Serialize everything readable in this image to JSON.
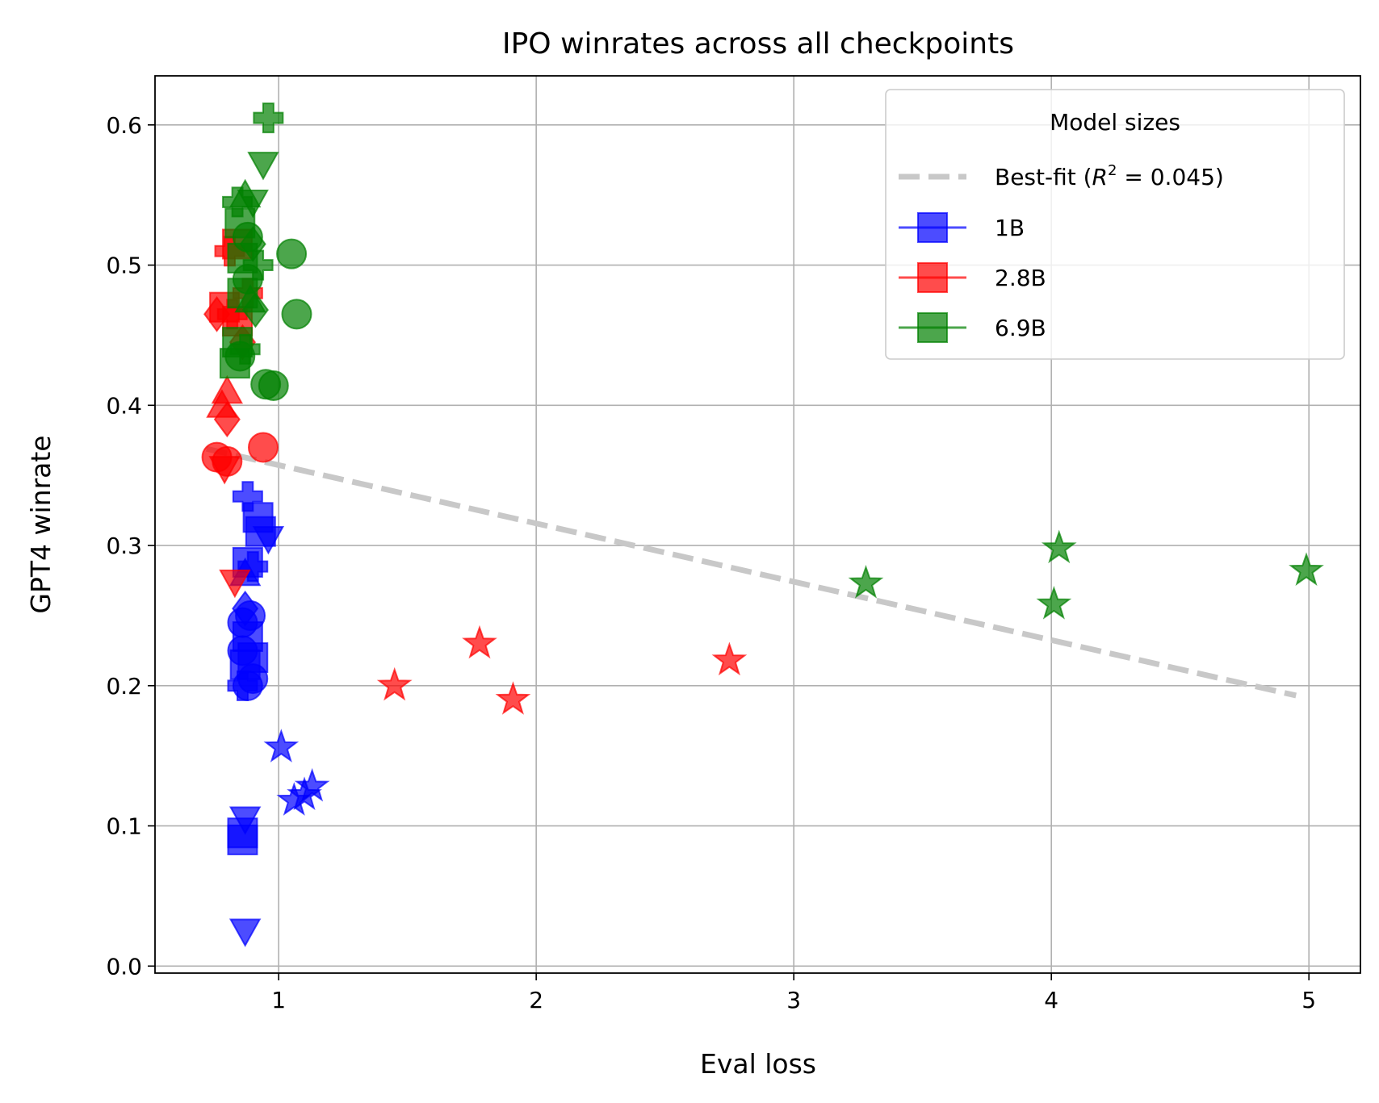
{
  "chart_data": {
    "type": "scatter",
    "title": "IPO winrates across all checkpoints",
    "xlabel": "Eval loss",
    "ylabel": "GPT4 winrate",
    "xlim": [
      0.52,
      5.2
    ],
    "ylim": [
      -0.005,
      0.635
    ],
    "xticks": [
      1,
      2,
      3,
      4,
      5
    ],
    "yticks": [
      0.0,
      0.1,
      0.2,
      0.3,
      0.4,
      0.5,
      0.6
    ],
    "xtick_labels": [
      "1",
      "2",
      "3",
      "4",
      "5"
    ],
    "ytick_labels": [
      "0.0",
      "0.1",
      "0.2",
      "0.3",
      "0.4",
      "0.5",
      "0.6"
    ],
    "grid": true,
    "legend": {
      "title": "Model sizes",
      "placement": "top-right",
      "entries": [
        {
          "label_prefix": "Best-fit (",
          "label_math": "R",
          "label_sup": "2",
          "label_suffix": " = 0.045)",
          "kind": "fit"
        },
        {
          "label": "1B",
          "series": 0
        },
        {
          "label": "2.8B",
          "series": 1
        },
        {
          "label": "6.9B",
          "series": 2
        }
      ]
    },
    "best_fit": {
      "label": "Best-fit (R^2 = 0.045)",
      "x": [
        0.72,
        4.95
      ],
      "y": [
        0.369,
        0.193
      ],
      "color": "#c8c8c8"
    },
    "series": [
      {
        "name": "1B",
        "color": "#0000ff",
        "points": [
          {
            "x": 0.87,
            "y": 0.025,
            "marker": "v"
          },
          {
            "x": 0.86,
            "y": 0.09,
            "marker": "s"
          },
          {
            "x": 0.86,
            "y": 0.095,
            "marker": "s"
          },
          {
            "x": 0.87,
            "y": 0.105,
            "marker": "v"
          },
          {
            "x": 1.01,
            "y": 0.156,
            "marker": "*"
          },
          {
            "x": 1.06,
            "y": 0.118,
            "marker": "*"
          },
          {
            "x": 1.1,
            "y": 0.122,
            "marker": "*"
          },
          {
            "x": 1.13,
            "y": 0.128,
            "marker": "*"
          },
          {
            "x": 0.86,
            "y": 0.2,
            "marker": "P"
          },
          {
            "x": 0.88,
            "y": 0.2,
            "marker": "o"
          },
          {
            "x": 0.9,
            "y": 0.205,
            "marker": "o"
          },
          {
            "x": 0.87,
            "y": 0.215,
            "marker": "s"
          },
          {
            "x": 0.86,
            "y": 0.225,
            "marker": "o"
          },
          {
            "x": 0.9,
            "y": 0.22,
            "marker": "s"
          },
          {
            "x": 0.88,
            "y": 0.235,
            "marker": "s"
          },
          {
            "x": 0.86,
            "y": 0.245,
            "marker": "o"
          },
          {
            "x": 0.89,
            "y": 0.25,
            "marker": "o"
          },
          {
            "x": 0.87,
            "y": 0.255,
            "marker": "D"
          },
          {
            "x": 0.9,
            "y": 0.285,
            "marker": "P"
          },
          {
            "x": 0.87,
            "y": 0.28,
            "marker": "^"
          },
          {
            "x": 0.88,
            "y": 0.288,
            "marker": "s"
          },
          {
            "x": 0.93,
            "y": 0.31,
            "marker": "s"
          },
          {
            "x": 0.96,
            "y": 0.305,
            "marker": "v"
          },
          {
            "x": 0.92,
            "y": 0.32,
            "marker": "s"
          },
          {
            "x": 0.88,
            "y": 0.335,
            "marker": "P"
          }
        ]
      },
      {
        "name": "2.8B",
        "color": "#ff0000",
        "points": [
          {
            "x": 0.76,
            "y": 0.363,
            "marker": "o"
          },
          {
            "x": 0.8,
            "y": 0.36,
            "marker": "o"
          },
          {
            "x": 0.79,
            "y": 0.355,
            "marker": "v"
          },
          {
            "x": 0.8,
            "y": 0.39,
            "marker": "D"
          },
          {
            "x": 0.78,
            "y": 0.4,
            "marker": "^"
          },
          {
            "x": 0.8,
            "y": 0.41,
            "marker": "^"
          },
          {
            "x": 0.94,
            "y": 0.37,
            "marker": "o"
          },
          {
            "x": 0.76,
            "y": 0.465,
            "marker": "D"
          },
          {
            "x": 0.79,
            "y": 0.47,
            "marker": "s"
          },
          {
            "x": 0.82,
            "y": 0.465,
            "marker": "P"
          },
          {
            "x": 0.84,
            "y": 0.46,
            "marker": "s"
          },
          {
            "x": 0.86,
            "y": 0.445,
            "marker": "D"
          },
          {
            "x": 0.88,
            "y": 0.48,
            "marker": "P"
          },
          {
            "x": 0.81,
            "y": 0.51,
            "marker": "P"
          },
          {
            "x": 0.84,
            "y": 0.515,
            "marker": "s"
          },
          {
            "x": 0.83,
            "y": 0.274,
            "marker": "v"
          },
          {
            "x": 1.45,
            "y": 0.2,
            "marker": "*"
          },
          {
            "x": 1.78,
            "y": 0.23,
            "marker": "*"
          },
          {
            "x": 1.91,
            "y": 0.19,
            "marker": "*"
          },
          {
            "x": 2.75,
            "y": 0.218,
            "marker": "*"
          }
        ]
      },
      {
        "name": "6.9B",
        "color": "#008000",
        "points": [
          {
            "x": 0.96,
            "y": 0.605,
            "marker": "P"
          },
          {
            "x": 0.94,
            "y": 0.572,
            "marker": "v"
          },
          {
            "x": 0.84,
            "y": 0.545,
            "marker": "P"
          },
          {
            "x": 0.87,
            "y": 0.55,
            "marker": "^"
          },
          {
            "x": 0.9,
            "y": 0.545,
            "marker": "v"
          },
          {
            "x": 0.85,
            "y": 0.53,
            "marker": "s"
          },
          {
            "x": 0.88,
            "y": 0.52,
            "marker": "o"
          },
          {
            "x": 0.9,
            "y": 0.515,
            "marker": "D"
          },
          {
            "x": 0.86,
            "y": 0.505,
            "marker": "s"
          },
          {
            "x": 0.92,
            "y": 0.5,
            "marker": "P"
          },
          {
            "x": 0.88,
            "y": 0.49,
            "marker": "o"
          },
          {
            "x": 1.05,
            "y": 0.508,
            "marker": "o"
          },
          {
            "x": 0.86,
            "y": 0.48,
            "marker": "s"
          },
          {
            "x": 0.89,
            "y": 0.475,
            "marker": "^"
          },
          {
            "x": 0.91,
            "y": 0.468,
            "marker": "D"
          },
          {
            "x": 1.07,
            "y": 0.465,
            "marker": "o"
          },
          {
            "x": 0.84,
            "y": 0.445,
            "marker": "s"
          },
          {
            "x": 0.85,
            "y": 0.435,
            "marker": "o"
          },
          {
            "x": 0.87,
            "y": 0.44,
            "marker": "P"
          },
          {
            "x": 0.83,
            "y": 0.43,
            "marker": "s"
          },
          {
            "x": 0.95,
            "y": 0.415,
            "marker": "o"
          },
          {
            "x": 0.98,
            "y": 0.414,
            "marker": "o"
          },
          {
            "x": 3.28,
            "y": 0.273,
            "marker": "*"
          },
          {
            "x": 4.01,
            "y": 0.258,
            "marker": "*"
          },
          {
            "x": 4.03,
            "y": 0.298,
            "marker": "*"
          },
          {
            "x": 4.99,
            "y": 0.282,
            "marker": "*"
          }
        ]
      }
    ]
  }
}
